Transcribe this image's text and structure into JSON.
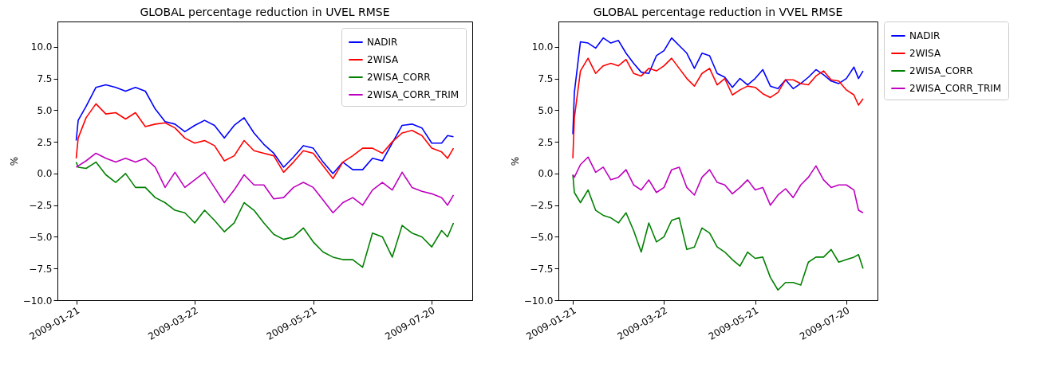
{
  "chart_data": [
    {
      "type": "line",
      "title": "GLOBAL percentage reduction in UVEL RMSE",
      "ylabel": "%",
      "x": [
        "2009-01-21",
        "2009-01-22",
        "2009-01-26",
        "2009-01-31",
        "2009-02-05",
        "2009-02-10",
        "2009-02-15",
        "2009-02-20",
        "2009-02-25",
        "2009-03-02",
        "2009-03-07",
        "2009-03-12",
        "2009-03-17",
        "2009-03-22",
        "2009-03-27",
        "2009-04-01",
        "2009-04-06",
        "2009-04-11",
        "2009-04-16",
        "2009-04-21",
        "2009-04-26",
        "2009-05-01",
        "2009-05-06",
        "2009-05-11",
        "2009-05-16",
        "2009-05-21",
        "2009-05-26",
        "2009-05-31",
        "2009-06-05",
        "2009-06-10",
        "2009-06-15",
        "2009-06-20",
        "2009-06-25",
        "2009-06-30",
        "2009-07-05",
        "2009-07-10",
        "2009-07-15",
        "2009-07-20",
        "2009-07-25",
        "2009-07-28",
        "2009-07-31"
      ],
      "series": [
        {
          "name": "NADIR",
          "color": "#0000ff",
          "values": [
            2.6,
            4.2,
            5.3,
            6.8,
            7.0,
            6.8,
            6.5,
            6.8,
            6.5,
            5.1,
            4.1,
            3.9,
            3.3,
            3.8,
            4.2,
            3.8,
            2.8,
            3.8,
            4.4,
            3.2,
            2.3,
            1.6,
            0.5,
            1.3,
            2.2,
            2.0,
            0.9,
            0.0,
            0.9,
            0.3,
            0.3,
            1.2,
            1.0,
            2.4,
            3.8,
            3.9,
            3.6,
            2.4,
            2.4,
            3.0,
            2.9
          ]
        },
        {
          "name": "2WISA",
          "color": "#ff0000",
          "values": [
            1.2,
            2.8,
            4.4,
            5.5,
            4.7,
            4.8,
            4.3,
            4.8,
            3.7,
            3.9,
            4.0,
            3.6,
            2.8,
            2.4,
            2.6,
            2.2,
            1.0,
            1.4,
            2.6,
            1.8,
            1.6,
            1.4,
            0.1,
            0.9,
            1.8,
            1.6,
            0.6,
            -0.4,
            0.9,
            1.4,
            2.0,
            2.0,
            1.6,
            2.5,
            3.2,
            3.4,
            3.0,
            2.0,
            1.7,
            1.2,
            2.0
          ]
        },
        {
          "name": "2WISA_CORR",
          "color": "#008000",
          "values": [
            0.9,
            0.5,
            0.4,
            0.9,
            -0.1,
            -0.7,
            0.0,
            -1.1,
            -1.1,
            -1.9,
            -2.3,
            -2.9,
            -3.1,
            -3.9,
            -2.9,
            -3.7,
            -4.6,
            -3.9,
            -2.3,
            -2.9,
            -3.9,
            -4.8,
            -5.2,
            -5.0,
            -4.3,
            -5.4,
            -6.2,
            -6.6,
            -6.8,
            -6.8,
            -7.4,
            -4.7,
            -5.0,
            -6.6,
            -4.1,
            -4.7,
            -5.0,
            -5.8,
            -4.5,
            -5.0,
            -3.9
          ]
        },
        {
          "name": "2WISA_CORR_TRIM",
          "color": "#bf00bf",
          "values": [
            0.5,
            0.6,
            1.0,
            1.6,
            1.2,
            0.9,
            1.2,
            0.9,
            1.2,
            0.5,
            -1.1,
            0.1,
            -1.1,
            -0.5,
            0.1,
            -1.1,
            -2.3,
            -1.3,
            -0.1,
            -0.9,
            -0.9,
            -2.0,
            -1.9,
            -1.1,
            -0.7,
            -1.1,
            -2.1,
            -3.1,
            -2.3,
            -1.9,
            -2.5,
            -1.3,
            -0.7,
            -1.3,
            0.1,
            -1.1,
            -1.4,
            -1.6,
            -1.9,
            -2.5,
            -1.7
          ]
        }
      ],
      "xlim": [
        "2009-01-11T12:00",
        "2009-08-09T12:00"
      ],
      "xticks": [
        "2009-01-21",
        "2009-03-22",
        "2009-05-21",
        "2009-07-20"
      ],
      "ylim": [
        -10,
        12
      ],
      "yticks": [
        {
          "value": -10,
          "label": "−10.0"
        },
        {
          "value": -7.5,
          "label": "−7.5"
        },
        {
          "value": -5,
          "label": "−5.0"
        },
        {
          "value": -2.5,
          "label": "−2.5"
        },
        {
          "value": 0,
          "label": "0.0"
        },
        {
          "value": 2.5,
          "label": "2.5"
        },
        {
          "value": 5,
          "label": "5.0"
        },
        {
          "value": 7.5,
          "label": "7.5"
        },
        {
          "value": 10,
          "label": "10.0"
        }
      ],
      "legend": "top right",
      "line_style": "solid"
    },
    {
      "type": "line",
      "title": "GLOBAL percentage reduction in VVEL RMSE",
      "ylabel": "%",
      "x": [
        "2009-01-21",
        "2009-01-22",
        "2009-01-26",
        "2009-01-31",
        "2009-02-05",
        "2009-02-10",
        "2009-02-15",
        "2009-02-20",
        "2009-02-25",
        "2009-03-02",
        "2009-03-07",
        "2009-03-12",
        "2009-03-17",
        "2009-03-22",
        "2009-03-27",
        "2009-04-01",
        "2009-04-06",
        "2009-04-11",
        "2009-04-16",
        "2009-04-21",
        "2009-04-26",
        "2009-05-01",
        "2009-05-06",
        "2009-05-11",
        "2009-05-16",
        "2009-05-21",
        "2009-05-26",
        "2009-05-31",
        "2009-06-05",
        "2009-06-10",
        "2009-06-15",
        "2009-06-20",
        "2009-06-25",
        "2009-06-30",
        "2009-07-05",
        "2009-07-10",
        "2009-07-15",
        "2009-07-20",
        "2009-07-25",
        "2009-07-28",
        "2009-07-31"
      ],
      "series": [
        {
          "name": "NADIR",
          "color": "#0000ff",
          "values": [
            3.1,
            6.4,
            10.4,
            10.3,
            9.9,
            10.7,
            10.3,
            10.5,
            9.5,
            8.7,
            8.0,
            7.9,
            9.3,
            9.7,
            10.7,
            10.1,
            9.5,
            8.3,
            9.5,
            9.3,
            7.9,
            7.6,
            6.8,
            7.5,
            7.0,
            7.5,
            8.2,
            6.9,
            6.7,
            7.4,
            6.7,
            7.1,
            7.6,
            8.2,
            7.8,
            7.3,
            7.1,
            7.5,
            8.4,
            7.5,
            8.1
          ]
        },
        {
          "name": "2WISA",
          "color": "#ff0000",
          "values": [
            1.2,
            4.4,
            8.1,
            9.1,
            7.9,
            8.5,
            8.7,
            8.5,
            9.0,
            7.9,
            7.7,
            8.3,
            8.1,
            8.5,
            9.1,
            8.3,
            7.5,
            6.9,
            7.9,
            8.3,
            7.0,
            7.5,
            6.2,
            6.6,
            6.9,
            6.8,
            6.3,
            6.0,
            6.4,
            7.4,
            7.4,
            7.1,
            7.0,
            7.7,
            8.1,
            7.4,
            7.3,
            6.6,
            6.2,
            5.4,
            5.9
          ]
        },
        {
          "name": "2WISA_CORR",
          "color": "#008000",
          "values": [
            -0.1,
            -1.5,
            -2.3,
            -1.3,
            -2.9,
            -3.3,
            -3.5,
            -3.9,
            -3.1,
            -4.5,
            -6.2,
            -3.9,
            -5.4,
            -5.0,
            -3.7,
            -3.5,
            -6.0,
            -5.8,
            -4.3,
            -4.7,
            -5.8,
            -6.2,
            -6.8,
            -7.3,
            -6.2,
            -6.7,
            -6.6,
            -8.2,
            -9.2,
            -8.6,
            -8.6,
            -8.8,
            -7.0,
            -6.6,
            -6.6,
            -6.0,
            -7.0,
            -6.8,
            -6.6,
            -6.4,
            -7.5
          ]
        },
        {
          "name": "2WISA_CORR_TRIM",
          "color": "#bf00bf",
          "values": [
            -0.1,
            -0.3,
            0.7,
            1.3,
            0.1,
            0.5,
            -0.5,
            -0.3,
            0.3,
            -0.9,
            -1.3,
            -0.5,
            -1.5,
            -1.1,
            0.3,
            0.5,
            -1.1,
            -1.7,
            -0.3,
            0.3,
            -0.7,
            -0.9,
            -1.6,
            -1.1,
            -0.5,
            -1.3,
            -1.1,
            -2.5,
            -1.7,
            -1.2,
            -1.9,
            -0.9,
            -0.3,
            0.6,
            -0.5,
            -1.1,
            -0.9,
            -0.9,
            -1.3,
            -2.9,
            -3.1
          ]
        }
      ],
      "xlim": [
        "2009-01-11T12:00",
        "2009-08-09T12:00"
      ],
      "xticks": [
        "2009-01-21",
        "2009-03-22",
        "2009-05-21",
        "2009-07-20"
      ],
      "ylim": [
        -10,
        12
      ],
      "yticks": [
        {
          "value": -10,
          "label": "−10.0"
        },
        {
          "value": -7.5,
          "label": "−7.5"
        },
        {
          "value": -5,
          "label": "−5.0"
        },
        {
          "value": -2.5,
          "label": "−2.5"
        },
        {
          "value": 0,
          "label": "0.0"
        },
        {
          "value": 2.5,
          "label": "2.5"
        },
        {
          "value": 5,
          "label": "5.0"
        },
        {
          "value": 7.5,
          "label": "7.5"
        },
        {
          "value": 10,
          "label": "10.0"
        }
      ],
      "legend": "right",
      "line_style": "solid"
    }
  ]
}
